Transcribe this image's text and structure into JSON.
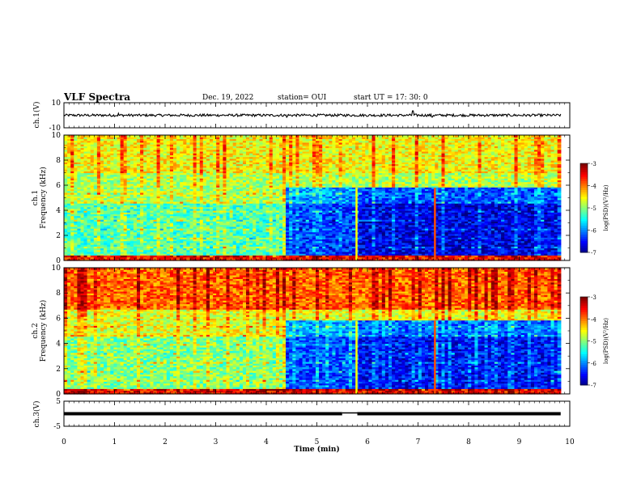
{
  "header": {
    "title": "VLF Spectra",
    "date": "Dec. 19, 2022",
    "station": "station= OUI",
    "start": "start  UT  =    17: 30: 0"
  },
  "chart_data": [
    {
      "id": "ch1-voltage",
      "type": "line",
      "ylabel": "ch.1(V)",
      "ylim": [
        -10,
        10
      ],
      "yticks": [
        "10",
        "-10"
      ],
      "xlim": [
        0,
        10
      ],
      "baseline": 0,
      "noise_amplitude": 1.0,
      "spikes": [
        {
          "x": 1.08,
          "y": 1.6
        },
        {
          "x": 4.4,
          "y": -1.6
        },
        {
          "x": 6.9,
          "y": 3.5
        },
        {
          "x": 7.28,
          "y": -1.4
        }
      ]
    },
    {
      "id": "ch1-spectrogram",
      "type": "heatmap",
      "ylabel": "ch.1\nFrequency (kHz)",
      "ylabel_lines": [
        "ch.1",
        "Frequency (kHz)"
      ],
      "ylim": [
        0,
        10
      ],
      "yticks": [
        "0",
        "2",
        "4",
        "6",
        "8",
        "10"
      ],
      "xlim": [
        0,
        10
      ],
      "colorbar": {
        "label": "log(PSD)(V²/Hz)",
        "min": -7,
        "max": -3,
        "ticks": [
          "-3",
          "-4",
          "-5",
          "-6",
          "-7"
        ]
      },
      "regimes": [
        {
          "t_start": 0,
          "t_end": 4.37,
          "low_band_level": -5.2
        },
        {
          "t_start": 4.37,
          "t_end": 5.8,
          "low_band_level": -6.3
        },
        {
          "t_start": 5.8,
          "t_end": 9.82,
          "low_band_level": -6.6
        }
      ],
      "band_levels_khz": [
        {
          "f0": 0,
          "f1": 0.3,
          "level": -3.6
        },
        {
          "f0": 0.3,
          "f1": 5.8,
          "level": -6.0
        },
        {
          "f0": 5.8,
          "f1": 7.0,
          "level": -4.8
        },
        {
          "f0": 7.0,
          "f1": 10,
          "level": -4.5
        }
      ],
      "vertical_features": [
        {
          "x": 7.33,
          "level": -3.8
        },
        {
          "x": 5.78,
          "level": -4.5
        }
      ],
      "data_end": 9.82
    },
    {
      "id": "ch2-spectrogram",
      "type": "heatmap",
      "ylabel": "ch.2\nFrequency (kHz)",
      "ylabel_lines": [
        "ch.2",
        "Frequency (kHz)"
      ],
      "ylim": [
        0,
        10
      ],
      "yticks": [
        "0",
        "2",
        "4",
        "6",
        "8",
        "10"
      ],
      "xlim": [
        0,
        10
      ],
      "colorbar": {
        "label": "log(PSD)(V²/Hz)",
        "min": -7,
        "max": -3,
        "ticks": [
          "-3",
          "-4",
          "-5",
          "-6",
          "-7"
        ]
      },
      "regimes": [
        {
          "t_start": 0,
          "t_end": 4.37,
          "low_band_level": -5.0
        },
        {
          "t_start": 4.37,
          "t_end": 5.8,
          "low_band_level": -6.2
        },
        {
          "t_start": 5.8,
          "t_end": 9.82,
          "low_band_level": -6.5
        }
      ],
      "band_levels_khz": [
        {
          "f0": 0,
          "f1": 0.3,
          "level": -3.5
        },
        {
          "f0": 0.3,
          "f1": 5.8,
          "level": -5.9
        },
        {
          "f0": 5.8,
          "f1": 6.6,
          "level": -4.6
        },
        {
          "f0": 6.6,
          "f1": 10,
          "level": -3.9
        }
      ],
      "vertical_features": [
        {
          "x": 7.33,
          "level": -3.8
        },
        {
          "x": 5.78,
          "level": -4.5
        }
      ],
      "data_end": 9.82
    },
    {
      "id": "ch3-voltage",
      "type": "line",
      "ylabel": "ch.3(V)",
      "ylim": [
        -5,
        5
      ],
      "yticks": [
        "5",
        "-5"
      ],
      "xlim": [
        0,
        10
      ],
      "level": 0,
      "gap": [
        5.5,
        5.8
      ],
      "xlabel": "Time (min)",
      "xticks": [
        "0",
        "1",
        "2",
        "3",
        "4",
        "5",
        "6",
        "7",
        "8",
        "9",
        "10"
      ]
    }
  ]
}
